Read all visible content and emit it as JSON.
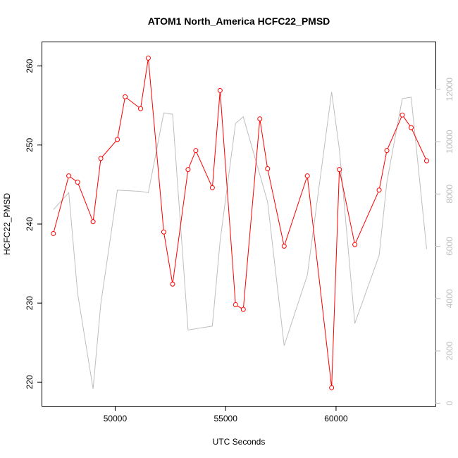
{
  "chart_data": {
    "type": "line",
    "title": "ATOM1 North_America HCFC22_PMSD",
    "xlabel": "UTC Seconds",
    "ylabel": "HCFC22_PMSD",
    "xlim": [
      46700,
      64500
    ],
    "ylim": [
      217,
      263
    ],
    "y2lim": [
      -100,
      13800
    ],
    "x_ticks": [
      50000,
      55000,
      60000
    ],
    "x_tick_labels": [
      "50000",
      "55000",
      "60000"
    ],
    "y_ticks": [
      220,
      230,
      240,
      250,
      260
    ],
    "y_tick_labels": [
      "220",
      "230",
      "240",
      "250",
      "260"
    ],
    "y2_ticks": [
      0,
      2000,
      4000,
      6000,
      8000,
      10000,
      12000
    ],
    "y2_tick_labels": [
      "0",
      "2000",
      "4000",
      "6000",
      "8000",
      "10000",
      "12000"
    ],
    "grid": false,
    "colors": {
      "primary": "#ff0000",
      "secondary": "#bebebe",
      "axis": "#000000"
    },
    "series": [
      {
        "axis": "left",
        "style": "line-with-open-circles",
        "color": "#ff0000",
        "x": [
          47200,
          47900,
          48300,
          49000,
          49350,
          50100,
          50450,
          51150,
          51500,
          52200,
          52600,
          53300,
          53650,
          54400,
          54750,
          55450,
          55800,
          56550,
          56900,
          57650,
          58700,
          59800,
          60150,
          60850,
          61950,
          62300,
          63000,
          63400,
          64100
        ],
        "values": [
          238.8,
          246.1,
          245.3,
          240.3,
          248.3,
          250.7,
          256.1,
          254.6,
          261.0,
          239.0,
          232.4,
          246.9,
          249.3,
          244.6,
          256.9,
          229.8,
          229.2,
          253.3,
          247.0,
          237.2,
          246.1,
          219.3,
          246.9,
          237.4,
          244.3,
          249.3,
          253.8,
          252.2,
          248.0
        ]
      },
      {
        "axis": "right",
        "style": "line",
        "color": "#bebebe",
        "x": [
          47200,
          47900,
          48300,
          49000,
          49350,
          50100,
          51150,
          51500,
          52200,
          52600,
          53300,
          54400,
          54750,
          55450,
          55800,
          56900,
          57650,
          58700,
          59800,
          60150,
          60850,
          61950,
          62300,
          63000,
          63400,
          64100
        ],
        "values": [
          7400,
          8050,
          4200,
          550,
          3800,
          8150,
          8100,
          8050,
          11100,
          11050,
          2800,
          2950,
          6200,
          10700,
          10950,
          7700,
          2200,
          4900,
          11900,
          9700,
          3050,
          5650,
          8450,
          11650,
          11700,
          5900
        ]
      }
    ]
  }
}
